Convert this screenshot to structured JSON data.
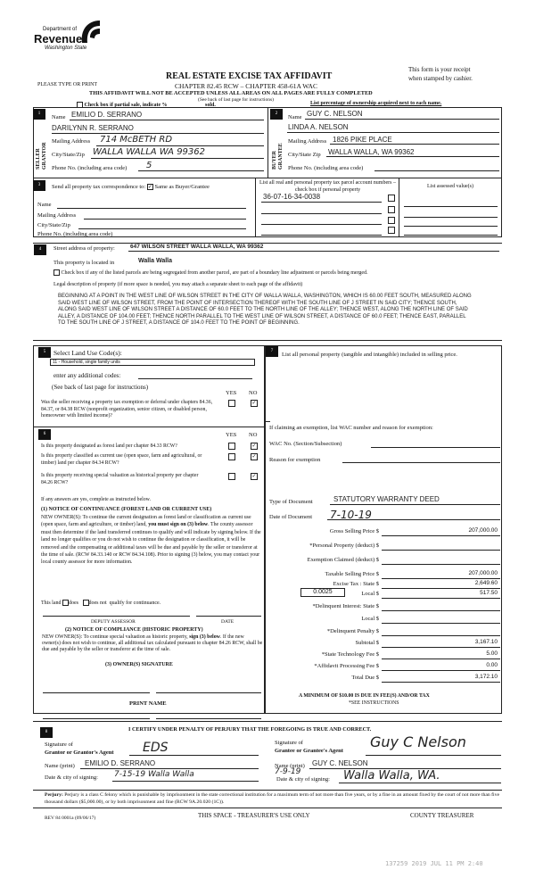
{
  "header": {
    "logo_line1": "Department of",
    "logo_line2": "Revenue",
    "logo_line3": "Washington State",
    "title": "REAL ESTATE EXCISE TAX AFFIDAVIT",
    "chapter": "CHAPTER 82.45 RCW – CHAPTER 458-61A WAC",
    "receipt_note1": "This form is your receipt",
    "receipt_note2": "when stamped by cashier.",
    "please_type": "PLEASE TYPE OR PRINT",
    "warning": "THIS AFFIDAVIT WILL NOT BE ACCEPTED UNLESS ALL AREAS ON ALL PAGES ARE FULLY COMPLETED",
    "see_back": "(See back of last page for instructions)",
    "partial_sale": "Check box if partial sale, indicate %",
    "sold": "sold.",
    "list_percentage": "List percentage of ownership acquired next to each name."
  },
  "seller": {
    "num": "1",
    "side_label": "SELLER GRANTOR",
    "name_label": "Name",
    "name1": "EMILIO D. SERRANO",
    "name2": "DARILYNN R. SERRANO",
    "mailing_label": "Mailing Address",
    "mailing": "714 McBETH RD",
    "city_label": "City/State/Zip",
    "city": "WALLA WALLA WA 99362",
    "phone_label": "Phone No. (including area code)",
    "phone": "5"
  },
  "buyer": {
    "num": "2",
    "side_label": "BUYER GRANTEE",
    "name_label": "Name",
    "name1": "GUY C. NELSON",
    "name2": "LINDA A. NELSON",
    "mailing_label": "Mailing Address",
    "mailing": "1826 PIKE PLACE",
    "city_label": "City/State Zip",
    "city": "WALLA WALLA, WA 99362",
    "phone_label": "Phone No. (including area code)"
  },
  "correspondence": {
    "num": "3",
    "label": "Send all property tax correspondence to:",
    "same_label": "Same as Buyer/Grantee",
    "same_checked": true,
    "name_label": "Name",
    "mailing_label": "Mailing Address",
    "city_label": "City/State/Zip",
    "phone_label": "Phone No. (including area code)"
  },
  "parcels": {
    "header": "List all real and personal property tax parcel account numbers – check box if personal property",
    "numbers": [
      "36-07-16-34-0038",
      "",
      "",
      ""
    ],
    "assessed_header": "List assessed value(s)"
  },
  "property": {
    "num": "4",
    "street_label": "Street address of property:",
    "street": "647 WILSON STREET WALLA WALLA, WA 99362",
    "located_label": "This property is located in",
    "located": "Walla Walla",
    "segregated_label": "Check box if any of the listed parcels are being segregated from another parcel, are part of a boundary line adjustment or parcels being merged.",
    "legal_label": "Legal description of property (if more space is needed, you may attach a separate sheet to each page of the affidavit)",
    "legal": "BEGINNING AT A POINT IN THE WEST LINE OF WILSON STREET IN THE CITY OF WALLA WALLA, WASHINGTON, WHICH IS 60.00 FEET SOUTH, MEASURED ALONG SAID WEST LINE OF WILSON STREET, FROM THE POINT OF INTERSECTION THEREOF WITH THE SOUTH LINE OF J STREET IN SAID CITY; THENCE SOUTH, ALONG SAID WEST LINE OF WILSON STREET A DISTANCE OF 60.0 FEET TO THE NORTH LINE OF THE ALLEY; THENCE WEST, ALONG THE NORTH LINE OF SAID ALLEY, A DISTANCE OF 104.00 FEET; THENCE NORTH PARALLEL TO THE WEST LINE OF WILSON STREET, A DISTANCE OF 60.0 FEET; THENCE EAST, PARALLEL TO THE SOUTH LINE OF J STREET, A DISTANCE OF 104.0 FEET TO THE POINT OF BEGINNING."
  },
  "land_use": {
    "num": "5",
    "label": "Select Land Use Code(s):",
    "code": "11 - Household, single family units",
    "additional": "enter any additional codes:",
    "see_back": "(See back of last page for instructions)",
    "yes": "YES",
    "no": "NO",
    "question": "Was the seller receiving a property tax exemption or deferral under chapters 84.36, 84.37, or 84.38 RCW (nonprofit organization, senior citizen, or disabled person, homeowner with limited income)?",
    "answer": "NO"
  },
  "section6": {
    "num": "6",
    "yes": "YES",
    "no": "NO",
    "questions": [
      {
        "text": "Is this property designated as forest land per chapter 84.33 RCW?",
        "answer": "NO"
      },
      {
        "text": "Is this property classified as current use (open space, farm and agricultural, or timber) land per chapter 84.34 RCW?",
        "answer": "NO"
      },
      {
        "text": "Is this property receiving special valuation as historical property per chapter 84.26 RCW?",
        "answer": "NO"
      }
    ],
    "if_yes": "If any answers are yes, complete as instructed below.",
    "notice1_title": "(1) NOTICE OF CONTINUANCE (FOREST LAND OR CURRENT USE)",
    "notice1_text_a": "NEW OWNER(S): To continue the current designation as forest land or classification as current use (open space, farm and agriculture, or timber) land, ",
    "notice1_bold": "you must sign on (3) below",
    "notice1_text_b": ". The county assessor must then determine if the land transferred continues to qualify and will indicate by signing below. If the land no longer qualifies or you do not wish to continue the designation or classification, it will be removed and the compensating or additional taxes will be due and payable by the seller or transferor at the time of sale. (RCW 84.33.140 or RCW 84.34.108). Prior to signing (3) below, you may contact your local county assessor for more information.",
    "this_land": "This land",
    "does": "does",
    "does_not": "does not",
    "qualify": "qualify for continuance.",
    "deputy": "DEPUTY ASSESSOR",
    "date": "DATE",
    "notice2_title": "(2) NOTICE OF COMPLIANCE (HISTORIC PROPERTY)",
    "notice2_text_a": "NEW OWNER(S): To continue special valuation as historic property, ",
    "notice2_bold": "sign (3) below",
    "notice2_text_b": ". If the new owner(s) does not wish to continue, all additional tax calculated pursuant to chapter 84.26 RCW, shall be due and payable by the seller or transferor at the time of sale.",
    "owner_sig": "(3) OWNER(S) SIGNATURE",
    "print_name": "PRINT NAME"
  },
  "section7": {
    "num": "7",
    "personal_label": "List all personal property (tangible and intangible) included in selling price.",
    "exemption_label": "If claiming an exemption, list WAC number and reason for exemption:",
    "wac_label": "WAC No. (Section/Subsection)",
    "reason_label": "Reason for exemption",
    "doc_type_label": "Type of Document",
    "doc_type": "STATUTORY WARRANTY DEED",
    "doc_date_label": "Date of Document",
    "doc_date": "7-10-19",
    "local_rate": "0.0025",
    "lines": [
      {
        "label": "Gross Selling Price $",
        "value": "207,000.00"
      },
      {
        "label": "*Personal Property (deduct) $",
        "value": ""
      },
      {
        "label": "Exemption Claimed (deduct) $",
        "value": ""
      },
      {
        "label": "Taxable Selling Price $",
        "value": "207,000.00"
      },
      {
        "label": "Excise Tax : State $",
        "value": "2,649.60"
      },
      {
        "label": "Local $",
        "value": "517.50"
      },
      {
        "label": "*Delinquent Interest: State $",
        "value": ""
      },
      {
        "label": "Local $",
        "value": ""
      },
      {
        "label": "*Delinquent Penalty $",
        "value": ""
      },
      {
        "label": "Subtotal $",
        "value": "3,167.10"
      },
      {
        "label": "*State Technology Fee $",
        "value": "5.00"
      },
      {
        "label": "*Affidavit Processing Fee $",
        "value": "0.00"
      },
      {
        "label": "Total Due $",
        "value": "3,172.10"
      }
    ],
    "minimum": "A MINIMUM OF $10.00 IS DUE IN FEE(S) AND/OR TAX",
    "see_instr": "*SEE INSTRUCTIONS"
  },
  "section8": {
    "num": "8",
    "certify": "I CERTIFY UNDER PENALTY OF PERJURY THAT THE FOREGOING IS TRUE AND CORRECT.",
    "grantor_sig_label1": "Signature of",
    "grantor_sig_label2": "Grantor or Grantor's Agent",
    "grantor_sig": "EDS",
    "grantee_sig_label1": "Signature of",
    "grantee_sig_label2": "Grantee or Grantee's Agent",
    "grantee_sig": "Guy C Nelson",
    "name_print_label": "Name (print)",
    "grantor_name": "EMILIO D. SERRANO",
    "grantee_name": "GUY C. NELSON",
    "date_city_label": "Date & city of signing:",
    "grantor_date_city": "7-15-19 Walla Walla",
    "grantee_date": "7-9-19",
    "grantee_city": "Walla Walla, WA."
  },
  "footer": {
    "perjury_bold": "Perjury:",
    "perjury": " Perjury is a class C felony which is punishable by imprisonment in the state correctional institution for a maximum term of not more than five years, or by a fine in an amount fixed by the court of not more than five thousand dollars ($5,000.00), or by both imprisonment and fine (RCW 9A.20.020 (1C)).",
    "rev": "REV 84 0001a (09/06/17)",
    "treasurer_space": "THIS SPACE - TREASURER'S USE ONLY",
    "county_treasurer": "COUNTY TREASURER",
    "stamp": "137259 2019 JUL 11 PM 2:40"
  }
}
